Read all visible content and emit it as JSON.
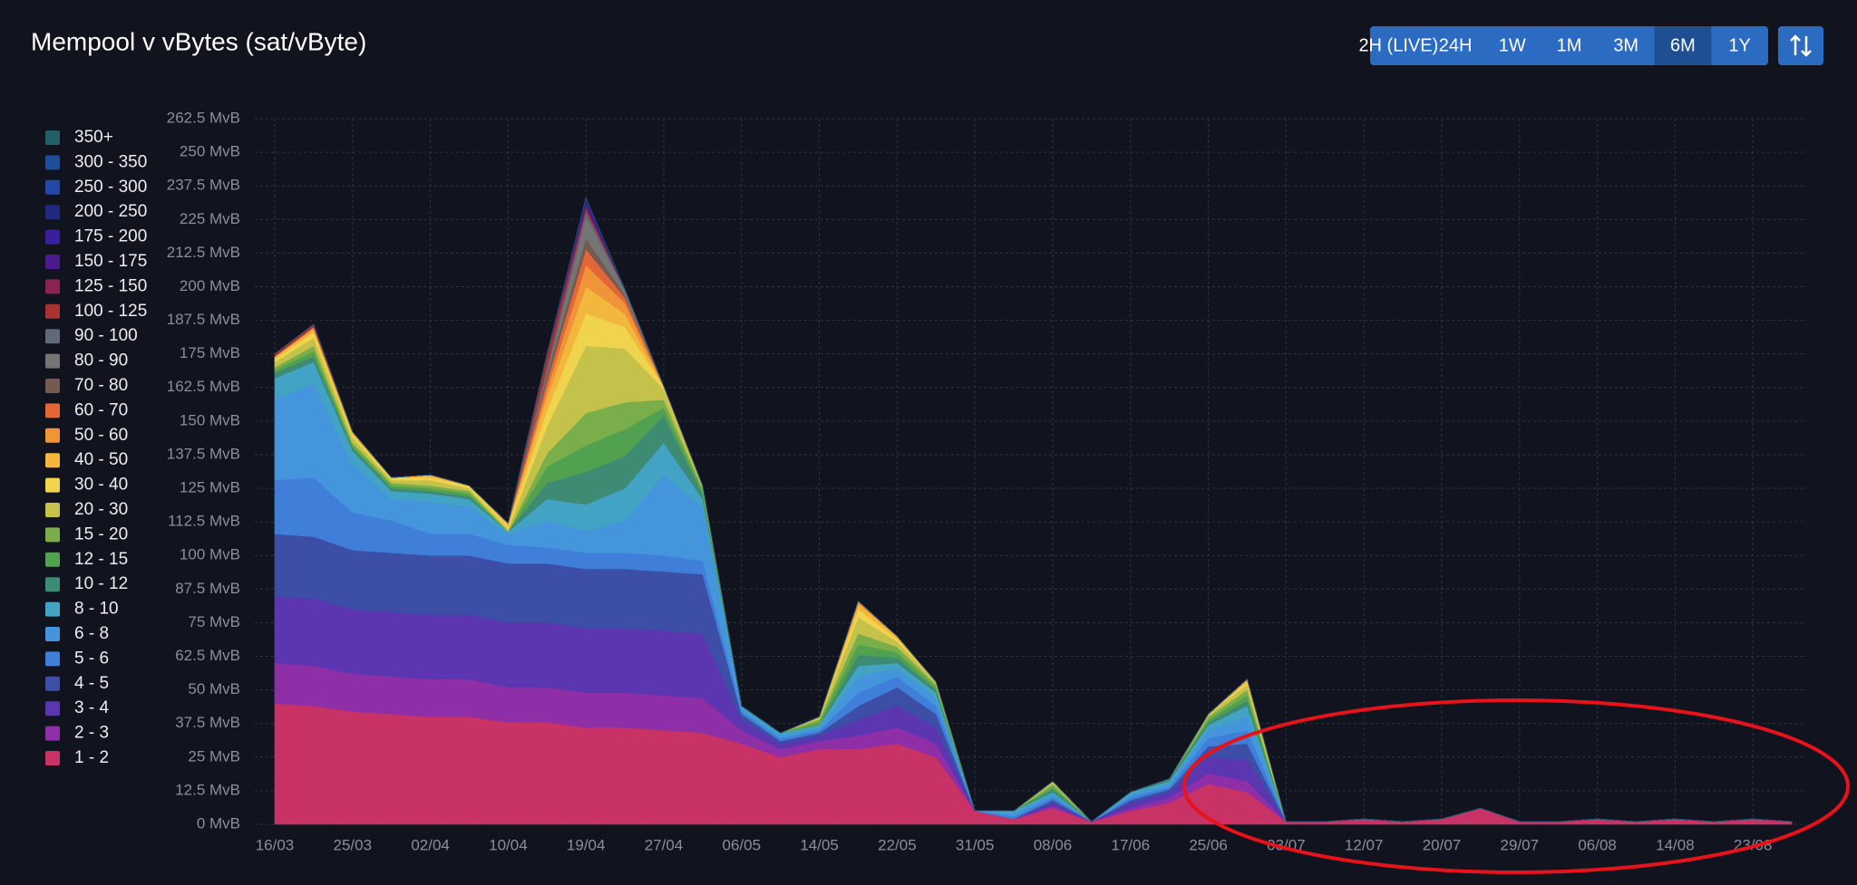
{
  "chart_data": {
    "type": "stacked-area",
    "title": "Mempool v vBytes (sat/vByte)",
    "buttons": [
      "2H (LIVE)",
      "24H",
      "1W",
      "1M",
      "3M",
      "6M",
      "1Y"
    ],
    "active_button": 5,
    "grid": true,
    "legend": "left",
    "ylim": [
      0,
      262.5
    ],
    "yticks": [
      {
        "value": 0,
        "label": "0 MvB"
      },
      {
        "value": 12.5,
        "label": "12.5 MvB"
      },
      {
        "value": 25,
        "label": "25 MvB"
      },
      {
        "value": 37.5,
        "label": "37.5 MvB"
      },
      {
        "value": 50,
        "label": "50 MvB"
      },
      {
        "value": 62.5,
        "label": "62.5 MvB"
      },
      {
        "value": 75,
        "label": "75 MvB"
      },
      {
        "value": 87.5,
        "label": "87.5 MvB"
      },
      {
        "value": 100,
        "label": "100 MvB"
      },
      {
        "value": 112.5,
        "label": "112.5 MvB"
      },
      {
        "value": 125,
        "label": "125 MvB"
      },
      {
        "value": 137.5,
        "label": "137.5 MvB"
      },
      {
        "value": 150,
        "label": "150 MvB"
      },
      {
        "value": 162.5,
        "label": "162.5 MvB"
      },
      {
        "value": 175,
        "label": "175 MvB"
      },
      {
        "value": 187.5,
        "label": "187.5 MvB"
      },
      {
        "value": 200,
        "label": "200 MvB"
      },
      {
        "value": 212.5,
        "label": "212.5 MvB"
      },
      {
        "value": 225,
        "label": "225 MvB"
      },
      {
        "value": 237.5,
        "label": "237.5 MvB"
      },
      {
        "value": 250,
        "label": "250 MvB"
      },
      {
        "value": 262.5,
        "label": "262.5 MvB"
      }
    ],
    "categories": [
      "16/03",
      null,
      "25/03",
      null,
      "02/04",
      null,
      "10/04",
      null,
      "19/04",
      null,
      "27/04",
      null,
      "06/05",
      null,
      "14/05",
      null,
      "22/05",
      null,
      "31/05",
      null,
      "08/06",
      null,
      "17/06",
      null,
      "25/06",
      null,
      "03/07",
      null,
      "12/07",
      null,
      "20/07",
      null,
      "29/07",
      null,
      "06/08",
      null,
      "14/08",
      null,
      "23/08",
      null
    ],
    "series": [
      {
        "name": "350+",
        "color": "#245e66",
        "values": [
          0,
          0,
          0,
          0,
          0,
          0,
          0,
          0,
          0,
          0,
          0,
          0,
          0,
          0,
          0,
          0,
          0,
          0,
          0,
          0,
          0,
          0,
          0,
          0,
          0,
          0,
          0,
          0,
          0,
          0,
          0,
          0,
          0,
          0,
          0,
          0,
          0,
          0,
          0,
          0
        ]
      },
      {
        "name": "300 - 350",
        "color": "#1f4d98",
        "values": [
          0,
          0,
          0,
          0,
          0,
          0,
          0,
          0,
          0,
          0,
          0,
          0,
          0,
          0,
          0,
          0,
          0,
          0,
          0,
          0,
          0,
          0,
          0,
          0,
          0,
          0,
          0,
          0,
          0,
          0,
          0,
          0,
          0,
          0,
          0,
          0,
          0,
          0,
          0,
          0
        ]
      },
      {
        "name": "250 - 300",
        "color": "#2448a8",
        "values": [
          0,
          0,
          0,
          0,
          0,
          0,
          0,
          0,
          0,
          0,
          0,
          0,
          0,
          0,
          0,
          0,
          0,
          0,
          0,
          0,
          0,
          0,
          0,
          0,
          0,
          0,
          0,
          0,
          0,
          0,
          0,
          0,
          0,
          0,
          0,
          0,
          0,
          0,
          0,
          0
        ]
      },
      {
        "name": "200 - 250",
        "color": "#1f2a7d",
        "values": [
          0,
          0,
          0,
          0,
          0,
          0,
          0,
          0,
          1,
          0,
          0,
          0,
          0,
          0,
          0,
          0,
          0,
          0,
          0,
          0,
          0,
          0,
          0,
          0,
          0,
          0,
          0,
          0,
          0,
          0,
          0,
          0,
          0,
          0,
          0,
          0,
          0,
          0,
          0,
          0
        ]
      },
      {
        "name": "175 - 200",
        "color": "#3a1f9a",
        "values": [
          0,
          0,
          0,
          0,
          0,
          0,
          0,
          0,
          1,
          0,
          0,
          0,
          0,
          0,
          0,
          0,
          0,
          0,
          0,
          0,
          0,
          0,
          0,
          0,
          0,
          0,
          0,
          0,
          0,
          0,
          0,
          0,
          0,
          0,
          0,
          0,
          0,
          0,
          0,
          0
        ]
      },
      {
        "name": "150 - 175",
        "color": "#4b1a8c",
        "values": [
          0,
          0,
          0,
          0,
          0,
          0,
          0,
          0,
          1,
          0,
          0,
          0,
          0,
          0,
          0,
          0,
          0,
          0,
          0,
          0,
          0,
          0,
          0,
          0,
          0,
          0,
          0,
          0,
          0,
          0,
          0,
          0,
          0,
          0,
          0,
          0,
          0,
          0,
          0,
          0
        ]
      },
      {
        "name": "125 - 150",
        "color": "#8a2351",
        "values": [
          0,
          0,
          0,
          0,
          0,
          0,
          0,
          1,
          1,
          0,
          0,
          0,
          0,
          0,
          0,
          0,
          0,
          0,
          0,
          0,
          0,
          0,
          0,
          0,
          0,
          0,
          0,
          0,
          0,
          0,
          0,
          0,
          0,
          0,
          0,
          0,
          0,
          0,
          0,
          0
        ]
      },
      {
        "name": "100 - 125",
        "color": "#a83232",
        "values": [
          1,
          1,
          0,
          0,
          0,
          0,
          0,
          4,
          1,
          0,
          0,
          0,
          0,
          0,
          0,
          0,
          0,
          0,
          0,
          0,
          0,
          0,
          0,
          0,
          0,
          0,
          0,
          0,
          0,
          0,
          0,
          0,
          0,
          0,
          0,
          0,
          0,
          0,
          0,
          0
        ]
      },
      {
        "name": "90 - 100",
        "color": "#5e6a78",
        "values": [
          0,
          0,
          0,
          0,
          0,
          0,
          0,
          1,
          2,
          0,
          0,
          0,
          0,
          0,
          0,
          0,
          0,
          0,
          0,
          0,
          0,
          0,
          0,
          0,
          0,
          0,
          0,
          0,
          0,
          0,
          0,
          0,
          0,
          0,
          0,
          0,
          0,
          0,
          0,
          0
        ]
      },
      {
        "name": "80 - 90",
        "color": "#757575",
        "values": [
          0,
          0,
          0,
          0,
          0,
          0,
          0,
          2,
          8,
          2,
          0,
          0,
          0,
          0,
          0,
          0,
          0,
          0,
          0,
          0,
          0,
          0,
          0,
          0,
          0,
          0,
          0,
          0,
          0,
          0,
          0,
          0,
          0,
          0,
          0,
          0,
          0,
          0,
          0,
          0
        ]
      },
      {
        "name": "70 - 80",
        "color": "#745a50",
        "values": [
          0,
          0,
          0,
          0,
          0,
          0,
          0,
          2,
          4,
          1,
          0,
          0,
          0,
          0,
          0,
          0,
          0,
          0,
          0,
          0,
          0,
          0,
          0,
          0,
          0,
          0,
          0,
          0,
          0,
          0,
          0,
          0,
          0,
          0,
          0,
          0,
          0,
          0,
          0,
          0
        ]
      },
      {
        "name": "60 - 70",
        "color": "#e36636",
        "values": [
          0,
          0,
          0,
          0,
          0,
          0,
          0,
          3,
          6,
          2,
          0,
          0,
          0,
          0,
          0,
          0,
          0,
          0,
          0,
          0,
          0,
          0,
          0,
          0,
          0,
          0,
          0,
          0,
          0,
          0,
          0,
          0,
          0,
          0,
          0,
          0,
          0,
          0,
          0,
          0
        ]
      },
      {
        "name": "50 - 60",
        "color": "#ef9438",
        "values": [
          0,
          1,
          0,
          0,
          0,
          0,
          0,
          3,
          8,
          4,
          0,
          0,
          0,
          0,
          0,
          1,
          0,
          0,
          0,
          0,
          0,
          0,
          0,
          0,
          0,
          0,
          0,
          0,
          0,
          0,
          0,
          0,
          0,
          0,
          0,
          0,
          0,
          0,
          0,
          0
        ]
      },
      {
        "name": "40 - 50",
        "color": "#f3b73d",
        "values": [
          1,
          1,
          1,
          0,
          1,
          0,
          1,
          5,
          10,
          5,
          0,
          0,
          0,
          0,
          0,
          2,
          1,
          0,
          0,
          0,
          0,
          0,
          0,
          0,
          0,
          1,
          0,
          0,
          0,
          0,
          0,
          0,
          0,
          0,
          0,
          0,
          0,
          0,
          0,
          0
        ]
      },
      {
        "name": "30 - 40",
        "color": "#f1d44e",
        "values": [
          1,
          2,
          1,
          1,
          1,
          1,
          1,
          6,
          12,
          8,
          1,
          0,
          0,
          0,
          0,
          3,
          1,
          0,
          0,
          0,
          0,
          0,
          0,
          0,
          0,
          1,
          0,
          0,
          0,
          0,
          0,
          0,
          0,
          0,
          0,
          0,
          0,
          0,
          0,
          0
        ]
      },
      {
        "name": "20 - 30",
        "color": "#c4c24a",
        "values": [
          2,
          3,
          2,
          1,
          2,
          1,
          1,
          10,
          25,
          20,
          4,
          1,
          0,
          0,
          1,
          6,
          2,
          1,
          0,
          0,
          1,
          0,
          0,
          0,
          1,
          2,
          0,
          0,
          0,
          0,
          0,
          0,
          0,
          0,
          0,
          0,
          0,
          0,
          0,
          0
        ]
      },
      {
        "name": "15 - 20",
        "color": "#7aae4a",
        "values": [
          1,
          2,
          1,
          1,
          1,
          1,
          0,
          5,
          12,
          10,
          3,
          1,
          0,
          0,
          1,
          4,
          2,
          1,
          0,
          0,
          1,
          0,
          0,
          0,
          1,
          2,
          0,
          0,
          0,
          0,
          0,
          0,
          0,
          0,
          0,
          0,
          0,
          0,
          0,
          0
        ]
      },
      {
        "name": "12 - 15",
        "color": "#52a151",
        "values": [
          1,
          2,
          1,
          1,
          1,
          1,
          0,
          6,
          10,
          10,
          3,
          1,
          0,
          0,
          1,
          4,
          2,
          1,
          0,
          0,
          1,
          0,
          0,
          0,
          1,
          2,
          0,
          0,
          0,
          0,
          0,
          0,
          0,
          0,
          0,
          0,
          0,
          0,
          0,
          0
        ]
      },
      {
        "name": "10 - 12",
        "color": "#3d8b72",
        "values": [
          2,
          2,
          1,
          1,
          1,
          1,
          0,
          6,
          12,
          12,
          10,
          2,
          0,
          0,
          0,
          4,
          2,
          1,
          0,
          0,
          1,
          0,
          0,
          1,
          1,
          2,
          0,
          0,
          0,
          0,
          0,
          0,
          0,
          0,
          0,
          0,
          0,
          0,
          0,
          0
        ]
      },
      {
        "name": "8 - 10",
        "color": "#42a3c4",
        "values": [
          8,
          8,
          5,
          3,
          3,
          3,
          1,
          8,
          10,
          12,
          12,
          3,
          1,
          1,
          1,
          4,
          2,
          2,
          0,
          1,
          1,
          0,
          1,
          1,
          2,
          4,
          0,
          0,
          0,
          0,
          0,
          0,
          0,
          0,
          0,
          0,
          0,
          0,
          0,
          0
        ]
      },
      {
        "name": "6 - 8",
        "color": "#4495dc",
        "values": [
          30,
          35,
          18,
          8,
          12,
          10,
          4,
          10,
          8,
          12,
          30,
          20,
          1,
          1,
          1,
          6,
          3,
          3,
          0,
          1,
          1,
          0,
          1,
          1,
          3,
          5,
          0,
          0,
          0,
          0,
          0,
          0,
          0,
          0,
          0,
          0,
          0,
          0,
          0,
          0
        ]
      },
      {
        "name": "5 - 6",
        "color": "#3f7ed9",
        "values": [
          20,
          22,
          14,
          12,
          8,
          8,
          7,
          6,
          6,
          6,
          6,
          5,
          1,
          1,
          1,
          5,
          4,
          3,
          0,
          1,
          1,
          0,
          1,
          1,
          3,
          5,
          0,
          0,
          0,
          0,
          0,
          0,
          0,
          0,
          0,
          0,
          0,
          0,
          0,
          0
        ]
      },
      {
        "name": "4 - 5",
        "color": "#3c4ea5",
        "values": [
          23,
          23,
          22,
          22,
          22,
          22,
          22,
          22,
          22,
          22,
          22,
          22,
          2,
          1,
          1,
          5,
          7,
          5,
          0,
          0,
          1,
          0,
          1,
          1,
          4,
          6,
          0,
          0,
          0,
          0,
          0,
          0,
          0,
          0,
          0,
          0,
          0,
          0,
          0,
          0
        ]
      },
      {
        "name": "3 - 4",
        "color": "#5b36b0",
        "values": [
          25,
          25,
          24,
          24,
          24,
          24,
          24,
          24,
          24,
          24,
          24,
          24,
          4,
          2,
          2,
          6,
          8,
          6,
          0,
          0,
          1,
          0,
          2,
          2,
          6,
          8,
          0,
          0,
          0,
          0,
          0,
          0,
          0,
          0,
          0,
          0,
          0,
          0,
          0,
          0
        ]
      },
      {
        "name": "2 - 3",
        "color": "#8e2fa8",
        "values": [
          15,
          15,
          14,
          14,
          14,
          14,
          13,
          13,
          13,
          13,
          13,
          13,
          5,
          3,
          3,
          5,
          6,
          5,
          0,
          0,
          1,
          0,
          1,
          2,
          4,
          4,
          0,
          0,
          0,
          0,
          0,
          0,
          0,
          0,
          0,
          0,
          0,
          0,
          0,
          0
        ]
      },
      {
        "name": "1 - 2",
        "color": "#c93264",
        "values": [
          45,
          44,
          42,
          41,
          40,
          40,
          38,
          38,
          36,
          36,
          35,
          34,
          30,
          25,
          28,
          28,
          30,
          25,
          5,
          2,
          6,
          1,
          5,
          8,
          15,
          12,
          1,
          1,
          2,
          1,
          2,
          6,
          1,
          1,
          2,
          1,
          2,
          1,
          2,
          1
        ]
      }
    ]
  }
}
